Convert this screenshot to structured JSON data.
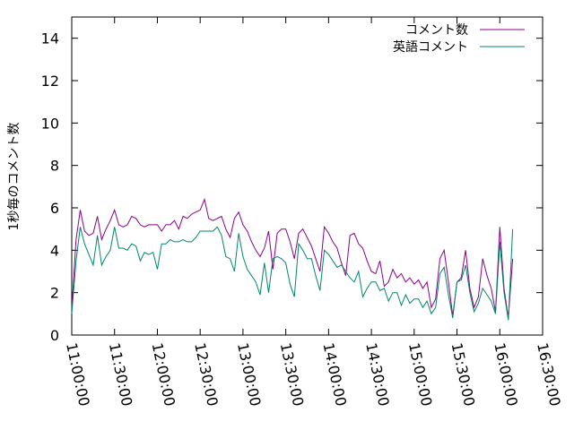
{
  "chart_data": {
    "type": "line",
    "title": "",
    "xlabel": "",
    "ylabel": "1秒毎のコメント数",
    "ylim": [
      0,
      15
    ],
    "yticks": [
      0,
      2,
      4,
      6,
      8,
      10,
      12,
      14
    ],
    "ytick_labels": [
      "0",
      "2",
      "4",
      "6",
      "8",
      "10",
      "12",
      "14"
    ],
    "xlim": [
      "11:00:00",
      "16:30:00"
    ],
    "xticks": [
      "11:00:00",
      "11:30:00",
      "12:00:00",
      "12:30:00",
      "13:00:00",
      "13:30:00",
      "14:00:00",
      "14:30:00",
      "15:00:00",
      "15:30:00",
      "16:00:00",
      "16:30:00"
    ],
    "grid": false,
    "legend_position": "top-right",
    "x_step_minutes": 3,
    "series": [
      {
        "name": "コメント数",
        "color": "#8b008b",
        "values": [
          1.2,
          4.5,
          5.9,
          4.9,
          4.7,
          4.8,
          5.6,
          4.5,
          5.0,
          5.4,
          5.9,
          5.2,
          5.1,
          5.2,
          5.6,
          5.5,
          5.2,
          5.1,
          5.2,
          5.2,
          5.2,
          4.9,
          5.2,
          5.2,
          5.4,
          5.0,
          5.6,
          5.5,
          5.7,
          5.8,
          5.9,
          6.4,
          5.5,
          5.4,
          5.5,
          5.6,
          5.0,
          4.6,
          5.5,
          5.8,
          5.2,
          4.9,
          4.4,
          4.0,
          3.7,
          4.1,
          4.9,
          3.1,
          4.8,
          5.0,
          5.0,
          4.4,
          3.6,
          4.8,
          5.0,
          4.6,
          4.2,
          3.6,
          3.0,
          5.1,
          4.8,
          4.4,
          4.1,
          3.4,
          2.8,
          4.7,
          4.8,
          4.3,
          4.1,
          3.5,
          3.0,
          2.9,
          3.5,
          2.3,
          2.5,
          3.1,
          2.7,
          2.9,
          2.5,
          2.7,
          2.4,
          2.6,
          2.2,
          2.5,
          1.3,
          1.7,
          3.6,
          4.0,
          2.5,
          0.9,
          2.5,
          2.7,
          4.0,
          2.2,
          1.3,
          1.8,
          3.6,
          2.8,
          2.2,
          1.1,
          5.1,
          2.2,
          0.8,
          3.6
        ]
      },
      {
        "name": "英語コメント",
        "color": "#00876a",
        "values": [
          1.0,
          3.5,
          5.1,
          4.3,
          3.8,
          3.3,
          4.7,
          3.3,
          3.7,
          4.0,
          5.1,
          4.1,
          4.1,
          4.0,
          4.3,
          4.2,
          3.5,
          3.9,
          3.8,
          3.9,
          3.1,
          4.3,
          4.3,
          4.5,
          4.4,
          4.4,
          4.5,
          4.4,
          4.4,
          4.6,
          4.9,
          4.9,
          4.9,
          4.9,
          5.1,
          4.7,
          3.7,
          3.6,
          3.0,
          4.8,
          3.7,
          3.1,
          2.8,
          2.5,
          1.9,
          3.4,
          2.0,
          3.6,
          3.7,
          3.6,
          3.4,
          2.4,
          1.8,
          4.3,
          4.0,
          3.6,
          3.6,
          2.8,
          2.1,
          4.0,
          3.8,
          3.5,
          3.2,
          3.3,
          3.0,
          2.7,
          2.5,
          3.0,
          1.8,
          2.2,
          2.5,
          2.5,
          2.1,
          2.2,
          1.6,
          2.0,
          2.0,
          1.4,
          1.9,
          1.5,
          1.7,
          1.7,
          1.3,
          1.6,
          1.0,
          1.3,
          2.9,
          3.2,
          1.9,
          0.8,
          2.5,
          2.6,
          3.3,
          2.0,
          1.1,
          1.5,
          2.2,
          1.9,
          1.6,
          1.0,
          4.4,
          2.0,
          0.7,
          5.0
        ]
      }
    ]
  }
}
